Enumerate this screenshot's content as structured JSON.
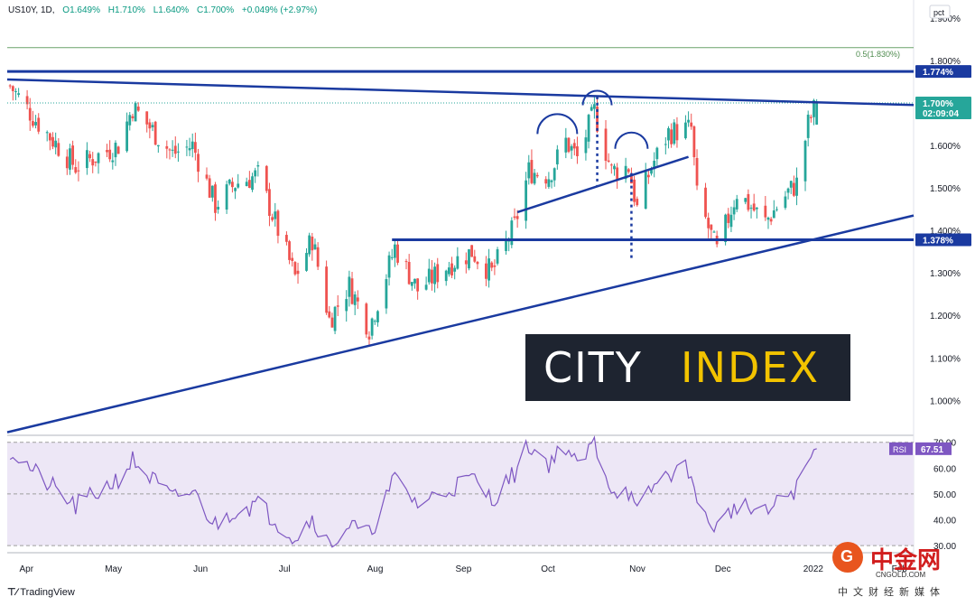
{
  "header": {
    "symbol": "US10Y, 1D,",
    "open": "O1.649%",
    "high": "H1.710%",
    "low": "L1.640%",
    "close": "C1.700%",
    "change": "+0.049% (+2.97%)"
  },
  "price_axis": {
    "unit": "pct",
    "ticks": [
      "1.900%",
      "1.800%",
      "1.600%",
      "1.500%",
      "1.400%",
      "1.300%",
      "1.200%",
      "1.100%",
      "1.000%"
    ]
  },
  "rsi_axis": {
    "ticks": [
      "70.00",
      "60.00",
      "50.00",
      "40.00",
      "30.00"
    ]
  },
  "time_axis": {
    "labels": [
      "Apr",
      "May",
      "Jun",
      "Jul",
      "Aug",
      "Sep",
      "Oct",
      "Nov",
      "Dec",
      "2022",
      "Feb"
    ]
  },
  "badges": {
    "fib_label": "0.5(1.830%)",
    "resistance": "1.774%",
    "last_price": "1.700%",
    "countdown": "02:09:04",
    "support": "1.378%",
    "rsi_name": "RSI",
    "rsi_value": "67.51"
  },
  "branding": {
    "logo_left": "CITY",
    "logo_right": "INDEX",
    "tradingview": "TradingView",
    "watermark_cn": "中金网",
    "watermark_site": "CNGOLD.COM",
    "watermark_sub": "中文财经新媒体"
  },
  "colors": {
    "up": "#26a69a",
    "down": "#ef5350",
    "trend": "#1a3aa0",
    "rsi_line": "#7e57c2",
    "rsi_band": "#ede7f6"
  },
  "chart_data": [
    {
      "type": "candlestick",
      "title": "US10Y, 1D",
      "x_range": [
        "2021-03-29",
        "2022-02-10"
      ],
      "ylim": [
        0.92,
        1.94
      ],
      "key_levels": {
        "fib_0.5": 1.83,
        "resistance": 1.774,
        "support": 1.378,
        "last": 1.7
      },
      "anchors": [
        {
          "date": "2021-03-30",
          "close": 1.74
        },
        {
          "date": "2021-04-08",
          "close": 1.66
        },
        {
          "date": "2021-04-22",
          "close": 1.55
        },
        {
          "date": "2021-05-07",
          "close": 1.6
        },
        {
          "date": "2021-05-12",
          "close": 1.69
        },
        {
          "date": "2021-05-26",
          "close": 1.58
        },
        {
          "date": "2021-06-02",
          "close": 1.6
        },
        {
          "date": "2021-06-10",
          "close": 1.46
        },
        {
          "date": "2021-06-17",
          "close": 1.51
        },
        {
          "date": "2021-06-25",
          "close": 1.53
        },
        {
          "date": "2021-07-08",
          "close": 1.29
        },
        {
          "date": "2021-07-14",
          "close": 1.38
        },
        {
          "date": "2021-07-20",
          "close": 1.19
        },
        {
          "date": "2021-07-27",
          "close": 1.27
        },
        {
          "date": "2021-08-03",
          "close": 1.17
        },
        {
          "date": "2021-08-12",
          "close": 1.36
        },
        {
          "date": "2021-08-20",
          "close": 1.26
        },
        {
          "date": "2021-08-31",
          "close": 1.32
        },
        {
          "date": "2021-09-08",
          "close": 1.35
        },
        {
          "date": "2021-09-15",
          "close": 1.3
        },
        {
          "date": "2021-09-23",
          "close": 1.41
        },
        {
          "date": "2021-09-28",
          "close": 1.54
        },
        {
          "date": "2021-10-05",
          "close": 1.53
        },
        {
          "date": "2021-10-11",
          "close": 1.61
        },
        {
          "date": "2021-10-15",
          "close": 1.57
        },
        {
          "date": "2021-10-21",
          "close": 1.68
        },
        {
          "date": "2021-10-27",
          "close": 1.54
        },
        {
          "date": "2021-11-02",
          "close": 1.55
        },
        {
          "date": "2021-11-05",
          "close": 1.45
        },
        {
          "date": "2021-11-10",
          "close": 1.55
        },
        {
          "date": "2021-11-16",
          "close": 1.63
        },
        {
          "date": "2021-11-24",
          "close": 1.64
        },
        {
          "date": "2021-11-26",
          "close": 1.48
        },
        {
          "date": "2021-12-03",
          "close": 1.35
        },
        {
          "date": "2021-12-10",
          "close": 1.49
        },
        {
          "date": "2021-12-20",
          "close": 1.42
        },
        {
          "date": "2021-12-28",
          "close": 1.49
        },
        {
          "date": "2021-12-31",
          "close": 1.51
        },
        {
          "date": "2022-01-04",
          "close": 1.65
        },
        {
          "date": "2022-01-07",
          "close": 1.7
        }
      ],
      "trendlines": [
        {
          "name": "",
          "from": {
            "date": "2021-03-29",
            "value": 1.755
          },
          "to": {
            "date": "2022-02-10",
            "value": 1.695
          }
        },
        {
          "name": "",
          "from": {
            "date": "2021-03-29",
            "value": 0.925
          },
          "to": {
            "date": "2022-02-10",
            "value": 1.435
          }
        },
        {
          "name": "",
          "from": {
            "date": "2021-09-24",
            "value": 1.443
          },
          "to": {
            "date": "2021-11-23",
            "value": 1.573
          }
        }
      ],
      "horizontal_lines": [
        {
          "value": 1.774,
          "from": "2021-03-29"
        },
        {
          "value": 1.378,
          "from": "2021-08-11"
        },
        {
          "value": 1.83,
          "from": "2021-03-29"
        }
      ],
      "dotted_drops": [
        {
          "date": "2021-10-22",
          "from": 1.715,
          "to": 1.505
        },
        {
          "date": "2021-11-03",
          "from": 1.535,
          "to": 1.335
        }
      ]
    },
    {
      "type": "line",
      "title": "RSI",
      "ylim": [
        29,
        72
      ],
      "band": [
        30,
        70
      ],
      "midline": 50,
      "last": 67.51,
      "anchors": [
        {
          "date": "2021-03-30",
          "value": 67
        },
        {
          "date": "2021-04-08",
          "value": 58
        },
        {
          "date": "2021-04-22",
          "value": 45
        },
        {
          "date": "2021-05-07",
          "value": 56
        },
        {
          "date": "2021-05-12",
          "value": 63
        },
        {
          "date": "2021-05-26",
          "value": 48
        },
        {
          "date": "2021-06-02",
          "value": 51
        },
        {
          "date": "2021-06-10",
          "value": 38
        },
        {
          "date": "2021-06-17",
          "value": 44
        },
        {
          "date": "2021-06-25",
          "value": 46
        },
        {
          "date": "2021-07-08",
          "value": 33
        },
        {
          "date": "2021-07-14",
          "value": 41
        },
        {
          "date": "2021-07-20",
          "value": 30
        },
        {
          "date": "2021-07-27",
          "value": 38
        },
        {
          "date": "2021-08-03",
          "value": 34
        },
        {
          "date": "2021-08-12",
          "value": 56
        },
        {
          "date": "2021-08-20",
          "value": 46
        },
        {
          "date": "2021-08-31",
          "value": 52
        },
        {
          "date": "2021-09-08",
          "value": 56
        },
        {
          "date": "2021-09-15",
          "value": 48
        },
        {
          "date": "2021-09-23",
          "value": 58
        },
        {
          "date": "2021-09-28",
          "value": 69
        },
        {
          "date": "2021-10-05",
          "value": 62
        },
        {
          "date": "2021-10-11",
          "value": 69
        },
        {
          "date": "2021-10-15",
          "value": 60
        },
        {
          "date": "2021-10-21",
          "value": 70
        },
        {
          "date": "2021-10-27",
          "value": 52
        },
        {
          "date": "2021-11-02",
          "value": 51
        },
        {
          "date": "2021-11-05",
          "value": 42
        },
        {
          "date": "2021-11-10",
          "value": 52
        },
        {
          "date": "2021-11-16",
          "value": 58
        },
        {
          "date": "2021-11-24",
          "value": 60
        },
        {
          "date": "2021-11-26",
          "value": 44
        },
        {
          "date": "2021-12-03",
          "value": 37
        },
        {
          "date": "2021-12-10",
          "value": 46
        },
        {
          "date": "2021-12-20",
          "value": 42
        },
        {
          "date": "2021-12-28",
          "value": 50
        },
        {
          "date": "2021-12-31",
          "value": 52
        },
        {
          "date": "2022-01-04",
          "value": 62
        },
        {
          "date": "2022-01-07",
          "value": 67.51
        }
      ]
    }
  ]
}
